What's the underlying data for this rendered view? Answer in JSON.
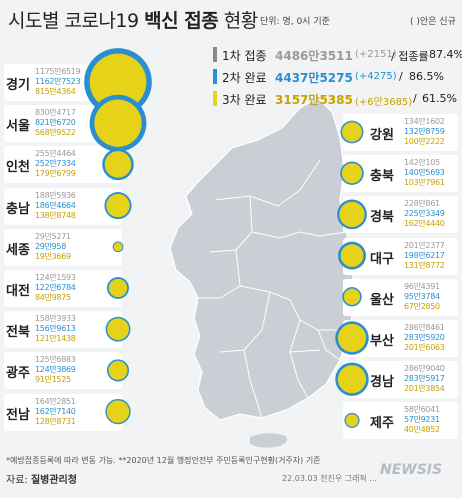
{
  "header": {
    "title_prefix": "시도별 코로나19 ",
    "title_bold": "백신 접종",
    "title_suffix": " 현황",
    "unit_text": "단위: 명, 0시 기준",
    "new_note": "( )안은 신규"
  },
  "legend": {
    "dose1": {
      "label": "1차 접종",
      "total": "4486만3511",
      "new": "(+2151)",
      "rate_label": "/ 접종률",
      "rate": "87.4%"
    },
    "dose2": {
      "label": "2차 완료",
      "total": "4437만5275",
      "new": "(+4275)",
      "rate_label": "/",
      "rate": "86.5%"
    },
    "dose3": {
      "label": "3차 완료",
      "total": "3157만5385",
      "new": "(+6만3685)",
      "rate_label": "/",
      "rate": "61.5%"
    }
  },
  "colors": {
    "dose1": "#8a8a8a",
    "dose2": "#2a8fd0",
    "dose3": "#e6d319",
    "bg": "#f2f3f4",
    "map": "#c9cfd4"
  },
  "regions_left": [
    {
      "name": "경기",
      "d1": "1175만6519",
      "d2": "1162만7523",
      "d3": "815만4364"
    },
    {
      "name": "서울",
      "d1": "830만4717",
      "d2": "821만6720",
      "d3": "568만9522"
    },
    {
      "name": "인천",
      "d1": "255만4464",
      "d2": "252만7334",
      "d3": "179만6799"
    },
    {
      "name": "충남",
      "d1": "188만5936",
      "d2": "186만4664",
      "d3": "138만8748"
    },
    {
      "name": "세종",
      "d1": "29만5271",
      "d2": "29만958",
      "d3": "19만3669"
    },
    {
      "name": "대전",
      "d1": "124만1593",
      "d2": "122만6784",
      "d3": "84만9875"
    },
    {
      "name": "전북",
      "d1": "158만3933",
      "d2": "156만9613",
      "d3": "121만1438"
    },
    {
      "name": "광주",
      "d1": "125만6883",
      "d2": "124만3869",
      "d3": "91만1525"
    },
    {
      "name": "전남",
      "d1": "164만2851",
      "d2": "162만7140",
      "d3": "128만8731"
    }
  ],
  "regions_right": [
    {
      "name": "강원",
      "d1": "134만1602",
      "d2": "132만8759",
      "d3": "100만2222"
    },
    {
      "name": "충북",
      "d1": "142만105",
      "d2": "140만5693",
      "d3": "103만7961"
    },
    {
      "name": "경북",
      "d1": "228만861",
      "d2": "225만3349",
      "d3": "162만4440"
    },
    {
      "name": "대구",
      "d1": "201만2377",
      "d2": "198만6217",
      "d3": "131만8772"
    },
    {
      "name": "울산",
      "d1": "96만4391",
      "d2": "95만3784",
      "d3": "67만2850"
    },
    {
      "name": "부산",
      "d1": "286만8461",
      "d2": "283만5920",
      "d3": "201만6063"
    },
    {
      "name": "경남",
      "d1": "286만9040",
      "d2": "283만5917",
      "d3": "201만3854"
    },
    {
      "name": "제주",
      "d1": "58만6041",
      "d2": "57만9231",
      "d3": "40만4852"
    }
  ],
  "footnote": "*예방접종등록에 따라 변동 가능.  **2020년 12월 행정안전부 주민등록인구현황(거주자) 기준",
  "source_label": "자료: ",
  "source": "질병관리청",
  "credit": "22.03.03 전진우  그래픽  ...",
  "watermark": "NEWSIS"
}
